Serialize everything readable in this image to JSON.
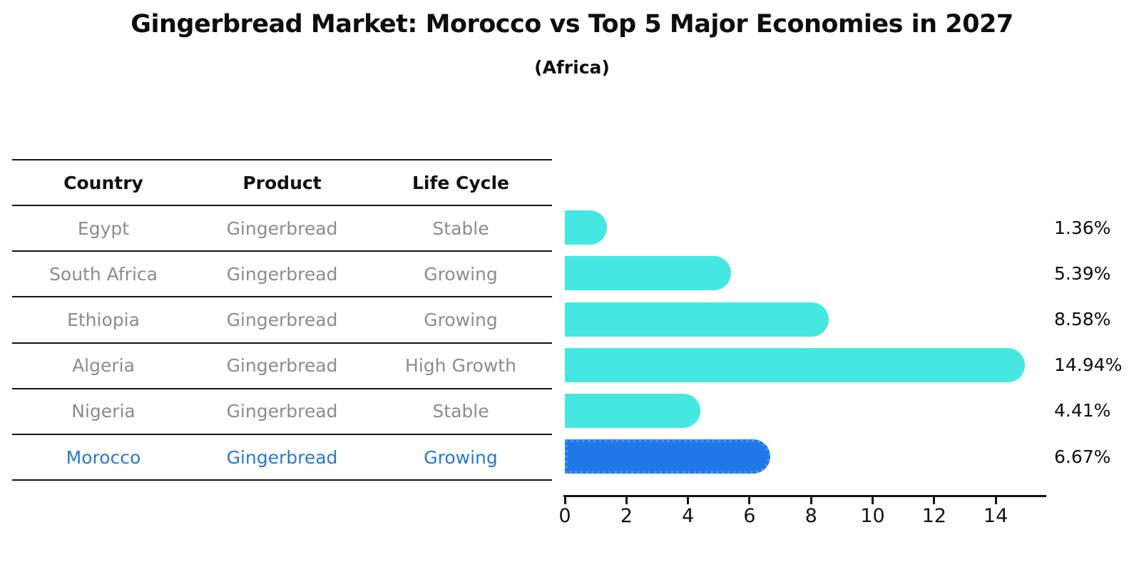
{
  "title": "Gingerbread Market: Morocco vs Top 5 Major Economies in 2027",
  "subtitle": "(Africa)",
  "table": {
    "headers": [
      "Country",
      "Product",
      "Life Cycle"
    ]
  },
  "chart_data": {
    "type": "bar",
    "orientation": "horizontal",
    "title": "Gingerbread Market: Morocco vs Top 5 Major Economies in 2027",
    "subtitle": "(Africa)",
    "xlabel": "",
    "ylabel": "",
    "xlim": [
      0,
      15.65
    ],
    "x_ticks": [
      0,
      2,
      4,
      6,
      8,
      10,
      12,
      14
    ],
    "grid": false,
    "legend": false,
    "rows": [
      {
        "country": "Egypt",
        "product": "Gingerbread",
        "life_cycle": "Stable",
        "value": 1.36,
        "value_label": "1.36%",
        "highlight": false
      },
      {
        "country": "South Africa",
        "product": "Gingerbread",
        "life_cycle": "Growing",
        "value": 5.39,
        "value_label": "5.39%",
        "highlight": false
      },
      {
        "country": "Ethiopia",
        "product": "Gingerbread",
        "life_cycle": "Growing",
        "value": 8.58,
        "value_label": "8.58%",
        "highlight": false
      },
      {
        "country": "Algeria",
        "product": "Gingerbread",
        "life_cycle": "High Growth",
        "value": 14.94,
        "value_label": "14.94%",
        "highlight": false
      },
      {
        "country": "Nigeria",
        "product": "Gingerbread",
        "life_cycle": "Stable",
        "value": 4.41,
        "value_label": "4.41%",
        "highlight": false
      },
      {
        "country": "Morocco",
        "product": "Gingerbread",
        "life_cycle": "Growing",
        "value": 6.67,
        "value_label": "6.67%",
        "highlight": true
      }
    ],
    "colors": {
      "bar": "#45e8e0",
      "highlight_bar": "#1f77e8",
      "highlight_border": "#4a94ee",
      "highlight_text": "#2878ce",
      "row_text": "#8c8c8c",
      "axis": "#141414",
      "value_text": "#0d0d0d"
    }
  }
}
